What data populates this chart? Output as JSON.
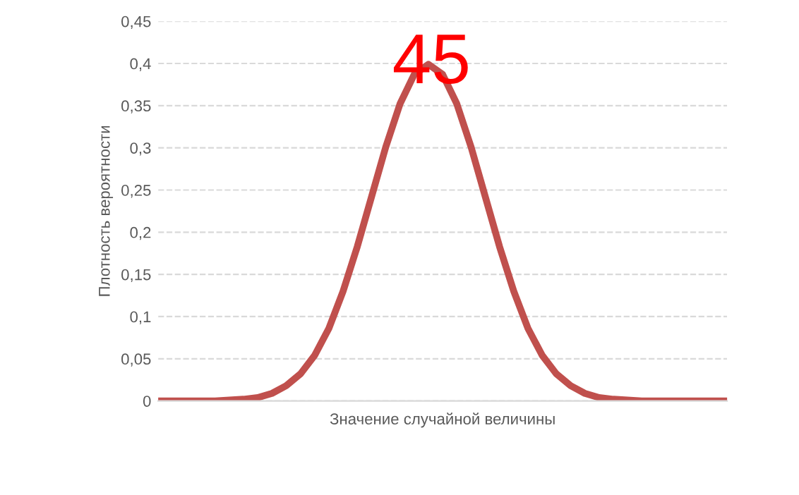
{
  "chart_data": {
    "type": "line",
    "xlabel": "Значение случайной величины",
    "ylabel": "Плотность вероятности",
    "annotations": [
      "45"
    ],
    "categories": [
      null,
      null,
      null,
      null,
      null,
      null,
      null,
      null,
      null,
      null,
      null,
      null,
      null,
      null,
      null,
      null,
      null,
      null,
      null,
      null,
      null,
      null,
      null,
      null,
      null,
      null,
      null,
      null,
      null,
      null,
      null,
      null,
      null,
      null,
      null,
      null,
      null,
      null,
      null,
      null,
      null
    ],
    "series": [
      {
        "color": "#c0504d",
        "values": [
          0,
          0,
          0,
          0,
          0,
          0.001,
          0.002,
          0.004,
          0.009,
          0.018,
          0.032,
          0.054,
          0.086,
          0.13,
          0.183,
          0.242,
          0.301,
          0.352,
          0.387,
          0.399,
          0.387,
          0.352,
          0.301,
          0.242,
          0.183,
          0.13,
          0.086,
          0.054,
          0.032,
          0.018,
          0.009,
          0.004,
          0.002,
          0.001,
          0,
          0,
          0,
          0,
          0,
          0,
          0
        ]
      }
    ],
    "ylim": [
      0,
      0.45
    ],
    "yticks": [
      {
        "value": 0,
        "label": "0"
      },
      {
        "value": 0.05,
        "label": "0,05"
      },
      {
        "value": 0.1,
        "label": "0,1"
      },
      {
        "value": 0.15,
        "label": "0,15"
      },
      {
        "value": 0.2,
        "label": "0,2"
      },
      {
        "value": 0.25,
        "label": "0,25"
      },
      {
        "value": 0.3,
        "label": "0,3"
      },
      {
        "value": 0.35,
        "label": "0,35"
      },
      {
        "value": 0.4,
        "label": "0,4"
      },
      {
        "value": 0.45,
        "label": "0,45"
      }
    ],
    "grid": "y",
    "tick_labels": "y",
    "legend": false,
    "marker": "none",
    "line_style": "solid"
  }
}
